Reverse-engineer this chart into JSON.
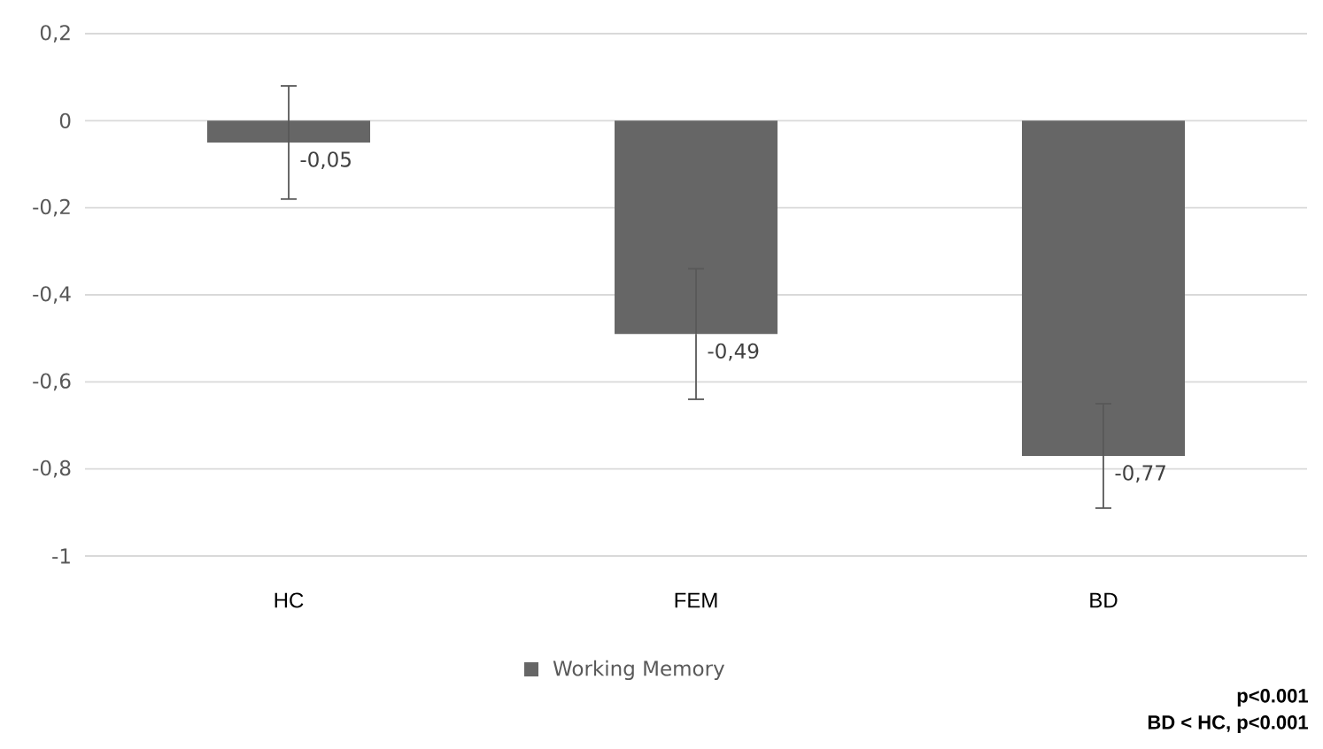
{
  "chart_data": {
    "type": "bar",
    "categories": [
      "HC",
      "FEM",
      "BD"
    ],
    "series": [
      {
        "name": "Working Memory",
        "color": "#666666",
        "values": [
          -0.05,
          -0.49,
          -0.77
        ],
        "errors": [
          0.13,
          0.15,
          0.12
        ],
        "value_labels": [
          "-0,05",
          "-0,49",
          "-0,77"
        ]
      }
    ],
    "ylim": [
      -1,
      0.2
    ],
    "yticks": [
      -1,
      {
        "value": -0.8,
        "label": "-0,8"
      },
      {
        "value": -0.6,
        "label": "-0,6"
      },
      {
        "value": -0.4,
        "label": "-0,4"
      },
      {
        "value": -0.2,
        "label": "-0,2"
      },
      0,
      {
        "value": 0.2,
        "label": "0,2"
      }
    ],
    "grid": "y",
    "legend": "bottom",
    "annotations": [
      "p<0.001",
      "BD < HC, p<0.001"
    ]
  }
}
